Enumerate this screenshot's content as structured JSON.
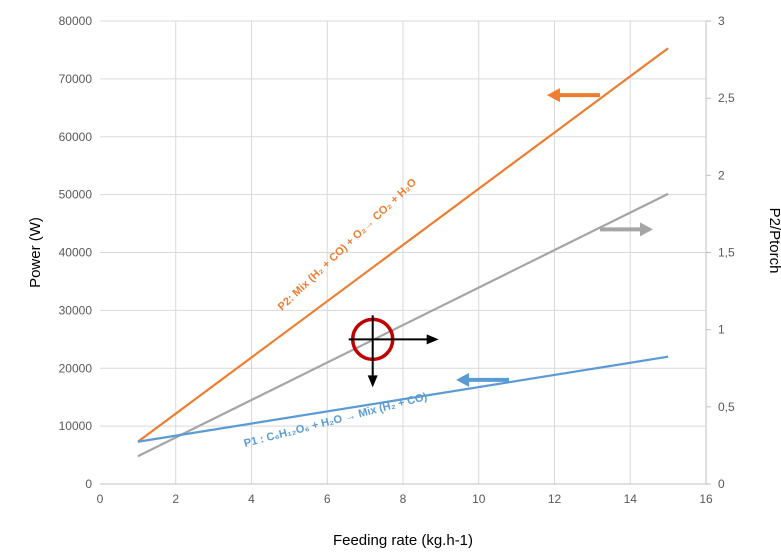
{
  "chart_data": {
    "type": "line",
    "xlabel": "Feeding rate (kg.h-1)",
    "ylabel": "Power (W)",
    "y2label": "P2/Ptorch",
    "xlim": [
      0,
      16
    ],
    "ylim": [
      0,
      80000
    ],
    "y2lim": [
      0,
      3
    ],
    "x_ticks": [
      "0",
      "2",
      "4",
      "6",
      "8",
      "10",
      "12",
      "14",
      "16"
    ],
    "y_ticks": [
      "0",
      "10000",
      "20000",
      "30000",
      "40000",
      "50000",
      "60000",
      "70000",
      "80000"
    ],
    "y2_ticks": [
      "0",
      "0,5",
      "1",
      "1,5",
      "2",
      "2,5",
      "3"
    ],
    "grid": true,
    "colors": {
      "p2": "#ED7D31",
      "ratio": "#A5A5A5",
      "p1": "#5B9BD5",
      "marker": "#C00000"
    },
    "series": [
      {
        "key": "p2",
        "axis": "left",
        "x": [
          1,
          15
        ],
        "y": [
          7300,
          75300
        ]
      },
      {
        "key": "ratio",
        "axis": "right",
        "x": [
          1,
          15
        ],
        "y": [
          0.18,
          1.88
        ]
      },
      {
        "key": "p1",
        "axis": "left",
        "x": [
          1,
          15
        ],
        "y": [
          7300,
          22000
        ]
      }
    ],
    "annotations": [
      {
        "key": "p2",
        "text": "P2: Mix (H₂ + CO) + O₂→ CO₂ + H₂O"
      },
      {
        "key": "p1",
        "text": "P1 : C₆H₁₂O₆ + H₂O → Mix (H₂ + CO)"
      }
    ],
    "axis_arrows": [
      {
        "key": "p2",
        "direction": "left",
        "x": [
          13.2,
          11.8
        ],
        "y": 67200,
        "axis": "left"
      },
      {
        "key": "ratio",
        "direction": "right",
        "x": [
          13.2,
          14.6
        ],
        "y": 1.65,
        "axis": "right"
      },
      {
        "key": "p1",
        "direction": "left",
        "x": [
          10.8,
          9.4
        ],
        "y": 18000,
        "axis": "left"
      }
    ],
    "crosshair": {
      "x": 7.2,
      "y": 25000
    }
  }
}
